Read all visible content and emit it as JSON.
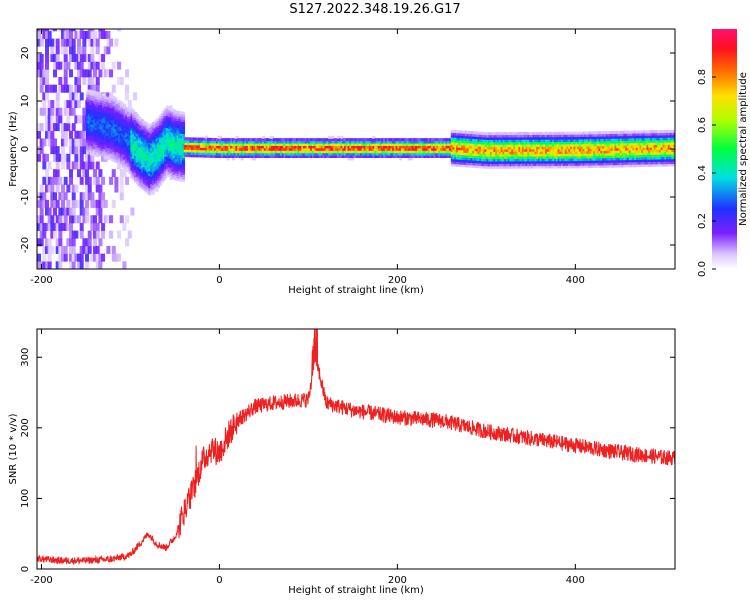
{
  "title": "S127.2022.348.19.26.G17",
  "colors": {
    "snr_line": "#ee2020",
    "axis": "#000000"
  },
  "chart_data": [
    {
      "type": "heatmap",
      "xlabel": "Height of straight line (km)",
      "ylabel": "Frequency (Hz)",
      "xlim": [
        -205,
        512
      ],
      "ylim": [
        -25,
        25
      ],
      "xticks": [
        -200,
        0,
        200,
        400
      ],
      "yticks": [
        -20,
        -10,
        0,
        10,
        20
      ],
      "colorbar": {
        "label": "Normalized spectral amplitude",
        "range": [
          0,
          1
        ],
        "ticks": [
          "0.0",
          "0.2",
          "0.4",
          "0.6",
          "0.8"
        ]
      },
      "ridge_centerline": [
        [
          -140,
          5
        ],
        [
          -120,
          4
        ],
        [
          -105,
          2
        ],
        [
          -90,
          -1
        ],
        [
          -80,
          -2.5
        ],
        [
          -70,
          -1
        ],
        [
          -60,
          1.5
        ],
        [
          -50,
          0.5
        ],
        [
          -40,
          0.2
        ],
        [
          0,
          0
        ],
        [
          100,
          0
        ],
        [
          200,
          0
        ],
        [
          260,
          0
        ],
        [
          300,
          -0.5
        ],
        [
          400,
          -0.4
        ],
        [
          512,
          0
        ]
      ]
    },
    {
      "type": "line",
      "xlabel": "Height of straight line (km)",
      "ylabel": "SNR (10 * v/v)",
      "xlim": [
        -205,
        512
      ],
      "ylim": [
        0,
        340
      ],
      "xticks": [
        -200,
        0,
        200,
        400
      ],
      "yticks": [
        0,
        100,
        200,
        300
      ],
      "series": [
        {
          "x": [
            -205,
            -180,
            -150,
            -120,
            -100,
            -90,
            -80,
            -70,
            -60,
            -50,
            -40,
            -30,
            -20,
            -10,
            0,
            10,
            20,
            40,
            60,
            80,
            100,
            108,
            120,
            150,
            200,
            250,
            300,
            350,
            400,
            450,
            500,
            512
          ],
          "values": [
            15,
            12,
            12,
            14,
            20,
            35,
            50,
            35,
            30,
            45,
            80,
            110,
            150,
            170,
            165,
            190,
            210,
            230,
            235,
            238,
            240,
            300,
            235,
            225,
            215,
            210,
            195,
            185,
            175,
            165,
            158,
            157
          ]
        }
      ]
    }
  ]
}
